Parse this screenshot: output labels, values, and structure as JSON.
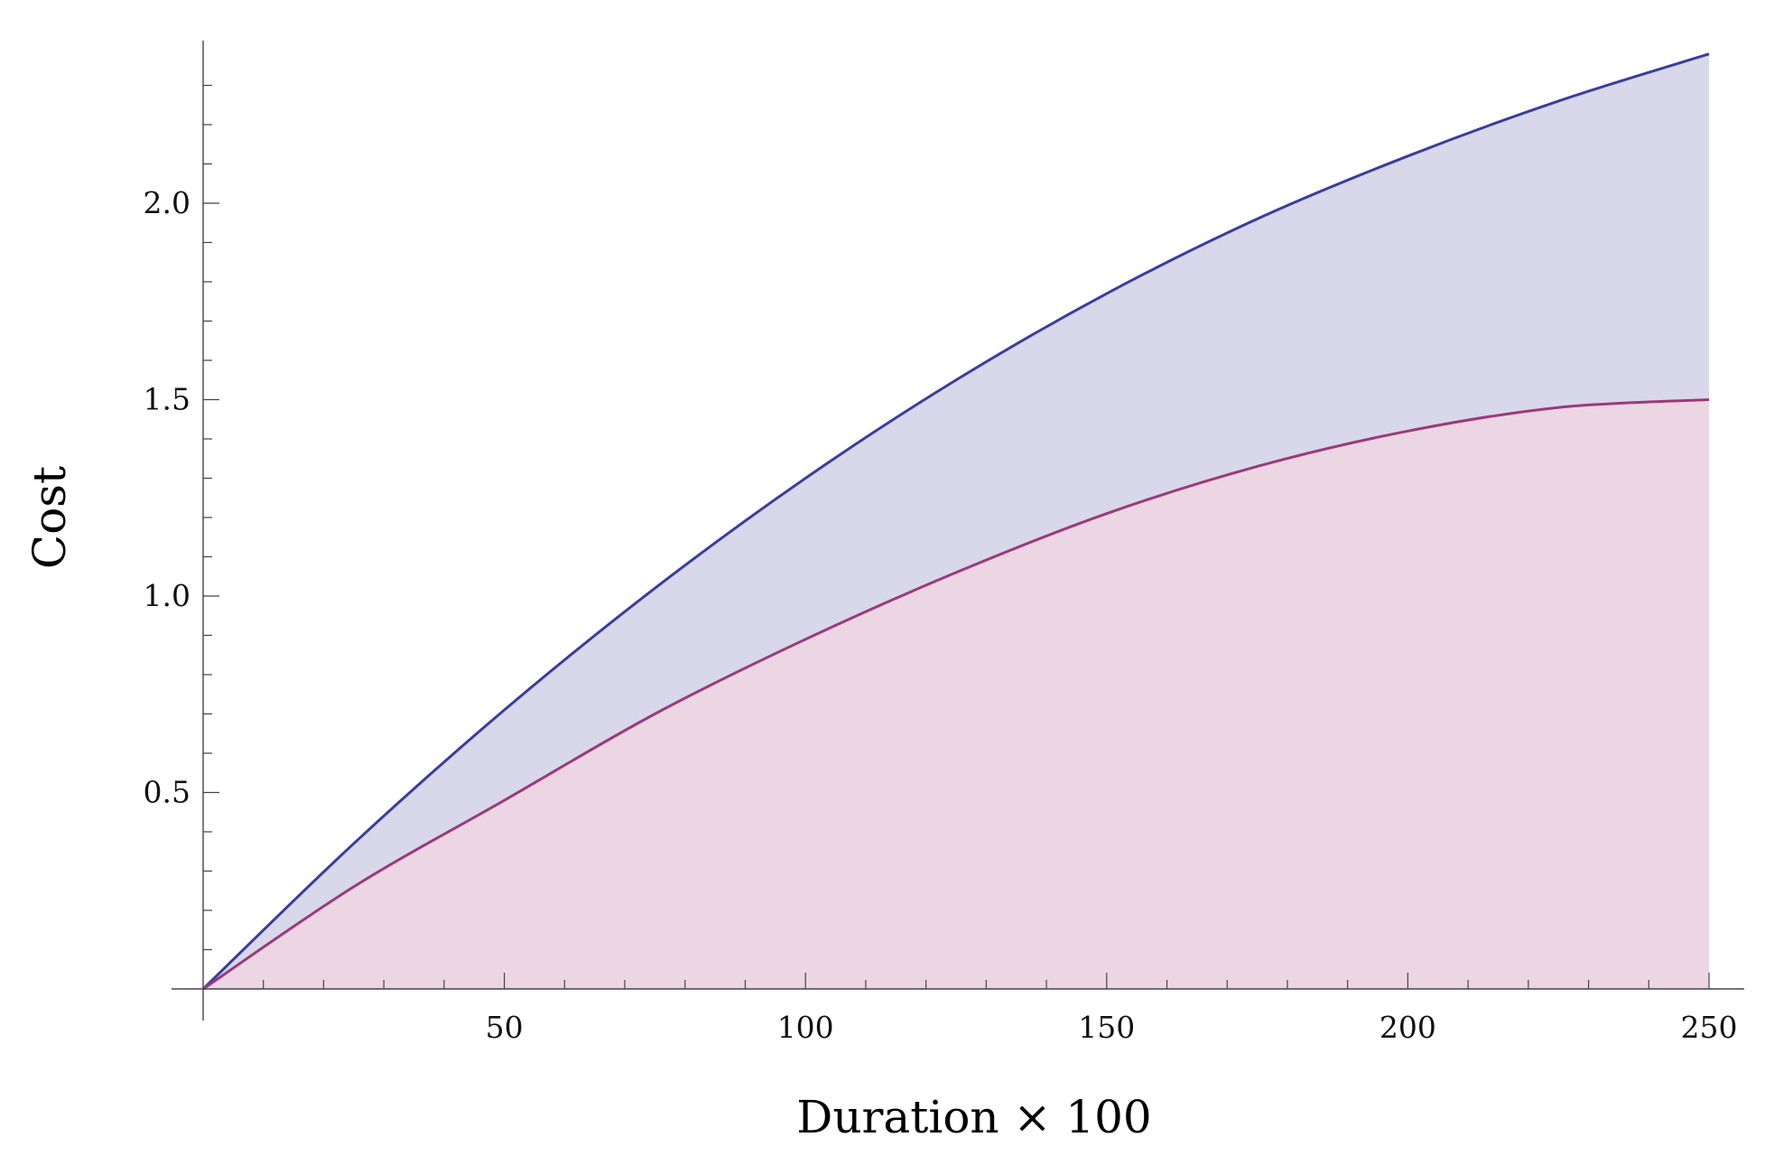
{
  "chart_data": {
    "type": "area",
    "title": "",
    "xlabel": "Duration × 100",
    "ylabel": "Cost",
    "xlim": [
      0,
      250
    ],
    "ylim": [
      0,
      2.4
    ],
    "x_ticks": [
      50,
      100,
      150,
      200,
      250
    ],
    "y_ticks": [
      0.5,
      1.0,
      1.5,
      2.0
    ],
    "x_tick_labels": [
      "50",
      "100",
      "150",
      "200",
      "250"
    ],
    "y_tick_labels": [
      "0.5",
      "1.0",
      "1.5",
      "2.0"
    ],
    "grid": false,
    "legend": "none",
    "series": [
      {
        "color": "#3a3d9e",
        "fill": "#d8d8ea",
        "x": [
          0,
          25,
          50,
          75,
          100,
          125,
          150,
          175,
          200,
          225,
          250
        ],
        "y": [
          0,
          0.37,
          0.71,
          1.02,
          1.3,
          1.55,
          1.77,
          1.96,
          2.12,
          2.26,
          2.38
        ]
      },
      {
        "color": "#9c3a78",
        "fill": "#ecd6e3",
        "x": [
          0,
          25,
          50,
          75,
          100,
          125,
          150,
          175,
          200,
          225,
          250
        ],
        "y": [
          0,
          0.26,
          0.48,
          0.7,
          0.89,
          1.06,
          1.21,
          1.33,
          1.42,
          1.48,
          1.5
        ]
      }
    ]
  }
}
